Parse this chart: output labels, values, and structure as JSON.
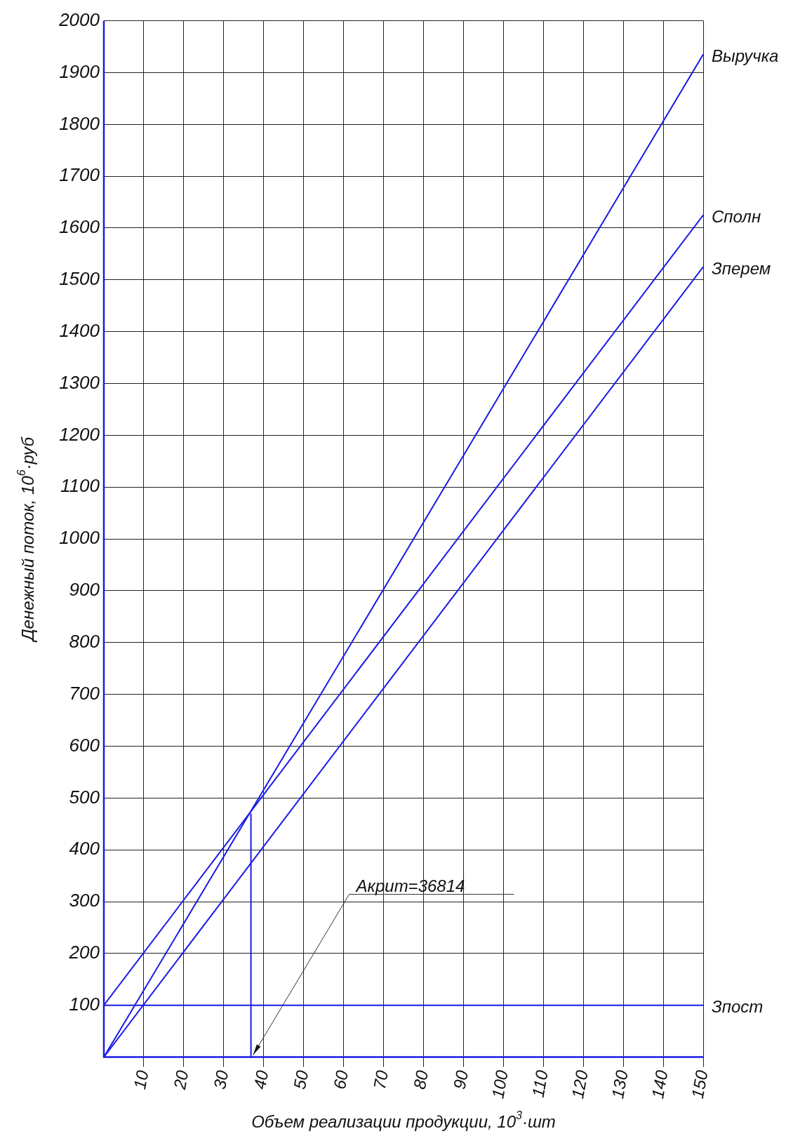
{
  "chart_data": {
    "type": "line",
    "xlabel": "Объем реализации продукции, 10$^{3}$·шт",
    "ylabel": "Денежный поток, 10$^{6}$·руб",
    "xlim": [
      0,
      150
    ],
    "ylim": [
      0,
      2000
    ],
    "xticks": [
      10,
      20,
      30,
      40,
      50,
      60,
      70,
      80,
      90,
      100,
      110,
      120,
      130,
      140,
      150
    ],
    "yticks": [
      100,
      200,
      300,
      400,
      500,
      600,
      700,
      800,
      900,
      1000,
      1100,
      1200,
      1300,
      1400,
      1500,
      1600,
      1700,
      1800,
      1900,
      2000
    ],
    "grid": true,
    "series": [
      {
        "name": "Выручка",
        "color": "#1a1ae6",
        "x": [
          0,
          150
        ],
        "values": [
          0,
          1935
        ]
      },
      {
        "name": "Сполн",
        "color": "#1a1ae6",
        "x": [
          0,
          150
        ],
        "values": [
          100,
          1625
        ]
      },
      {
        "name": "Зперем",
        "color": "#1a1ae6",
        "x": [
          0,
          150
        ],
        "values": [
          0,
          1525
        ]
      },
      {
        "name": "Зпост",
        "color": "#1a1ae6",
        "x": [
          0,
          150
        ],
        "values": [
          100,
          100
        ]
      },
      {
        "color": "#1a1ae6",
        "x": [
          36.814,
          36.814
        ],
        "values": [
          0,
          470
        ]
      }
    ],
    "annotations": [
      {
        "text": "Акрит=36814",
        "x": 36.814,
        "y": 0
      }
    ]
  }
}
